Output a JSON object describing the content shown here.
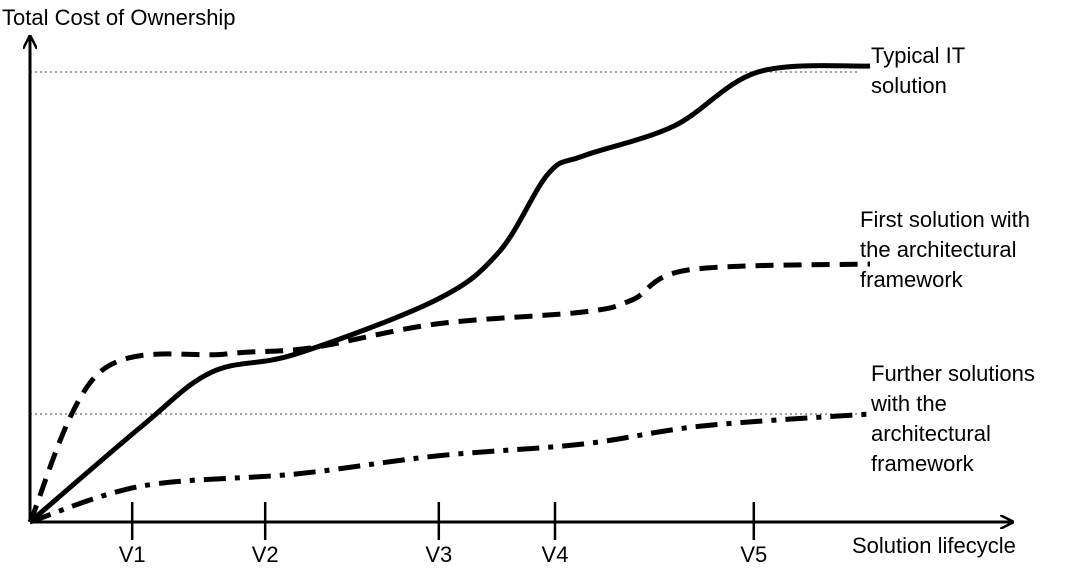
{
  "chart_data": {
    "type": "line",
    "title": "",
    "ylabel": "Total Cost of Ownership",
    "xlabel": "Solution lifecycle",
    "x_ticks": [
      "V1",
      "V2",
      "V3",
      "V4",
      "V5"
    ],
    "grid": false,
    "reference_lines": [
      "Typical IT solution final cost",
      "Further solutions final cost"
    ],
    "series": [
      {
        "name_lines": [
          "Typical IT",
          "solution"
        ],
        "style": "solid",
        "points": [
          {
            "x": 0,
            "y": 0
          },
          {
            "x": 0.8,
            "y": 0.16
          },
          {
            "x": 1.3,
            "y": 0.25
          },
          {
            "x": 1.9,
            "y": 0.28
          },
          {
            "x": 2.9,
            "y": 0.37
          },
          {
            "x": 3.35,
            "y": 0.45
          },
          {
            "x": 3.7,
            "y": 0.58
          },
          {
            "x": 3.95,
            "y": 0.61
          },
          {
            "x": 4.6,
            "y": 0.66
          },
          {
            "x": 5.2,
            "y": 0.75
          },
          {
            "x": 6.0,
            "y": 0.76
          }
        ]
      },
      {
        "name_lines": [
          "First solution with",
          "the architectural",
          "framework"
        ],
        "style": "dashed",
        "points": [
          {
            "x": 0,
            "y": 0
          },
          {
            "x": 0.5,
            "y": 0.25
          },
          {
            "x": 1.4,
            "y": 0.28
          },
          {
            "x": 2.0,
            "y": 0.29
          },
          {
            "x": 2.9,
            "y": 0.33
          },
          {
            "x": 3.95,
            "y": 0.35
          },
          {
            "x": 4.3,
            "y": 0.37
          },
          {
            "x": 4.7,
            "y": 0.42
          },
          {
            "x": 6.0,
            "y": 0.43
          }
        ]
      },
      {
        "name_lines": [
          "Further solutions",
          "with the",
          "architectural",
          "framework"
        ],
        "style": "dash-dot",
        "points": [
          {
            "x": 0,
            "y": 0
          },
          {
            "x": 0.8,
            "y": 0.06
          },
          {
            "x": 1.9,
            "y": 0.08
          },
          {
            "x": 2.9,
            "y": 0.11
          },
          {
            "x": 3.95,
            "y": 0.13
          },
          {
            "x": 4.8,
            "y": 0.16
          },
          {
            "x": 6.0,
            "y": 0.18
          }
        ]
      }
    ]
  }
}
